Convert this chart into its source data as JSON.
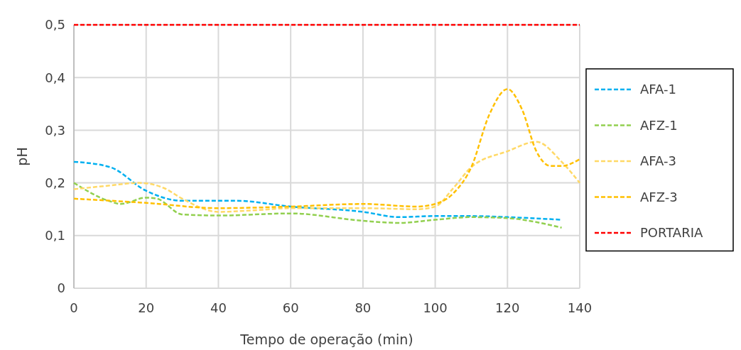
{
  "chart_data": {
    "type": "line",
    "xlabel": "Tempo de operação (min)",
    "ylabel": "pH",
    "xlim": [
      0,
      140
    ],
    "xticks": [
      0,
      20,
      40,
      60,
      80,
      100,
      120,
      140
    ],
    "ylim": [
      0,
      0.5
    ],
    "yticks": [
      {
        "value": 0,
        "label": "0"
      },
      {
        "value": 0.1,
        "label": "0,1"
      },
      {
        "value": 0.2,
        "label": "0,2"
      },
      {
        "value": 0.3,
        "label": "0,3"
      },
      {
        "value": 0.4,
        "label": "0,4"
      },
      {
        "value": 0.5,
        "label": "0,5"
      }
    ],
    "grid": true,
    "legend": "right",
    "line_style": "dashed",
    "marker": "none",
    "series": [
      {
        "name": "AFA-1",
        "color": "#00b0f0",
        "x": [
          0,
          10,
          20,
          30,
          40,
          45,
          60,
          80,
          90,
          100,
          110,
          120,
          135
        ],
        "values": [
          0.24,
          0.23,
          0.185,
          0.166,
          0.166,
          0.166,
          0.155,
          0.145,
          0.135,
          0.137,
          0.137,
          0.135,
          0.13
        ]
      },
      {
        "name": "AFZ-1",
        "color": "#92d050",
        "x": [
          0,
          10,
          13,
          20,
          23,
          30,
          40,
          60,
          80,
          90,
          100,
          110,
          120,
          135
        ],
        "values": [
          0.2,
          0.165,
          0.16,
          0.172,
          0.17,
          0.14,
          0.138,
          0.142,
          0.128,
          0.124,
          0.13,
          0.135,
          0.133,
          0.115
        ]
      },
      {
        "name": "AFA-3",
        "color": "#ffd966",
        "x": [
          0,
          10,
          18,
          25,
          30,
          40,
          50,
          60,
          80,
          95,
          100,
          105,
          110,
          120,
          128,
          135,
          140
        ],
        "values": [
          0.188,
          0.195,
          0.2,
          0.19,
          0.17,
          0.145,
          0.148,
          0.152,
          0.152,
          0.15,
          0.155,
          0.19,
          0.23,
          0.26,
          0.278,
          0.24,
          0.2
        ]
      },
      {
        "name": "AFZ-3",
        "color": "#ffc000",
        "x": [
          0,
          20,
          40,
          60,
          80,
          95,
          100,
          105,
          110,
          115,
          120,
          124,
          128,
          132,
          135,
          140
        ],
        "values": [
          0.17,
          0.162,
          0.152,
          0.155,
          0.16,
          0.155,
          0.16,
          0.18,
          0.23,
          0.33,
          0.378,
          0.34,
          0.26,
          0.232,
          0.232,
          0.245
        ]
      },
      {
        "name": "PORTARIA",
        "color": "#ff0000",
        "x": [
          0,
          140
        ],
        "values": [
          0.5,
          0.5
        ]
      }
    ]
  }
}
